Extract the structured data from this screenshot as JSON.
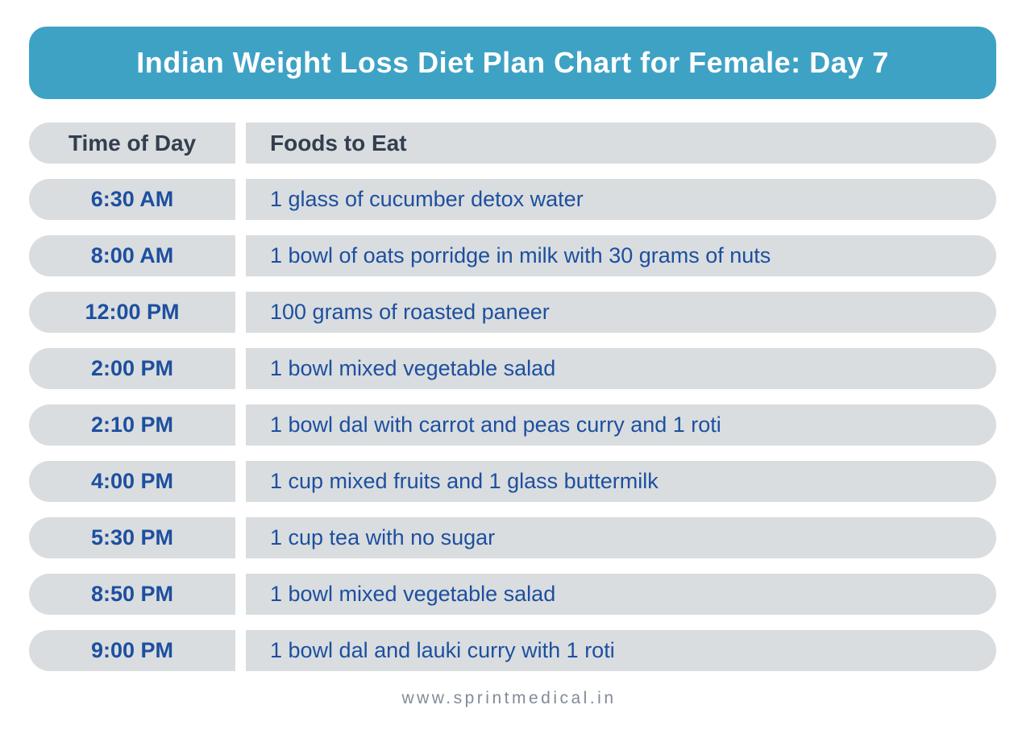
{
  "title": "Indian Weight Loss Diet Plan Chart for Female: Day 7",
  "table": {
    "header": {
      "time": "Time of Day",
      "food": "Foods to Eat"
    },
    "rows": [
      {
        "time": "6:30 AM",
        "food": "1 glass of cucumber detox water"
      },
      {
        "time": "8:00 AM",
        "food": "1 bowl of oats porridge in milk with 30 grams of nuts"
      },
      {
        "time": "12:00 PM",
        "food": "100 grams of roasted paneer"
      },
      {
        "time": "2:00 PM",
        "food": "1 bowl mixed vegetable salad"
      },
      {
        "time": "2:10 PM",
        "food": "1 bowl dal with carrot and peas curry and 1 roti"
      },
      {
        "time": "4:00 PM",
        "food": "1 cup mixed fruits and 1 glass buttermilk"
      },
      {
        "time": "5:30 PM",
        "food": "1 cup tea with no sugar"
      },
      {
        "time": "8:50 PM",
        "food": "1 bowl mixed vegetable salad"
      },
      {
        "time": "9:00 PM",
        "food": "1 bowl dal and lauki curry with 1 roti"
      }
    ]
  },
  "footer": {
    "website": "www.sprintmedical.in"
  },
  "colors": {
    "banner_bg": "#3EA2C5",
    "row_bg": "#D9DDDF",
    "header_text": "#333E4E",
    "accent_text": "#1D4F9F",
    "footer_text": "#828B99",
    "banner_text": "#FFFFFF"
  }
}
